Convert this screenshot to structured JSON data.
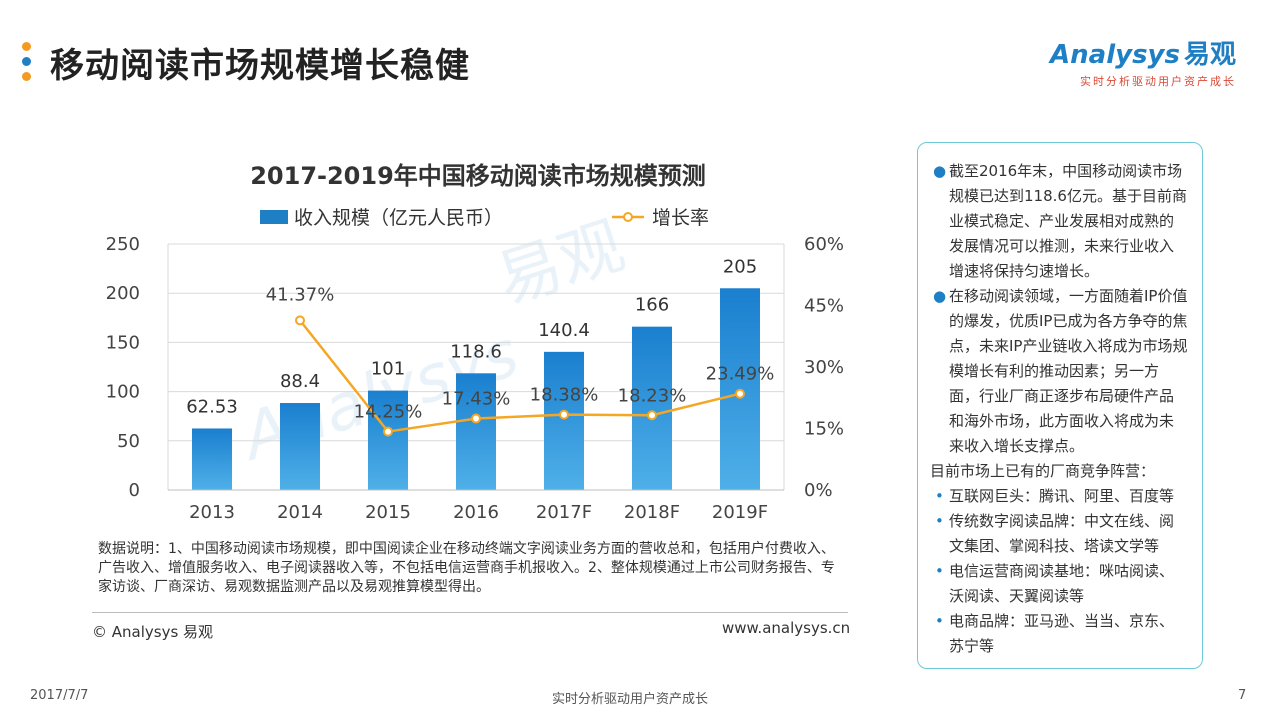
{
  "page": {
    "title": "移动阅读市场规模增长稳健",
    "accent_colors": [
      "#f39a1f",
      "#1f7fc4",
      "#f39a1f"
    ]
  },
  "logo": {
    "brand": "Analysys",
    "brand_cn": "易观",
    "tagline": "实时分析驱动用户资产成长"
  },
  "chart_data": {
    "type": "bar",
    "title": "2017-2019年中国移动阅读市场规模预测",
    "categories": [
      "2013",
      "2014",
      "2015",
      "2016",
      "2017F",
      "2018F",
      "2019F"
    ],
    "series": [
      {
        "name": "收入规模（亿元人民币）",
        "type": "bar",
        "axis": "left",
        "values": [
          62.53,
          88.4,
          101,
          118.6,
          140.4,
          166,
          205
        ],
        "labels": [
          "62.53",
          "88.4",
          "101",
          "118.6",
          "140.4",
          "166",
          "205"
        ],
        "color": "#1f7fc4"
      },
      {
        "name": "增长率",
        "type": "line",
        "axis": "right",
        "values": [
          null,
          41.37,
          14.25,
          17.43,
          18.38,
          18.23,
          23.49
        ],
        "labels": [
          "",
          "41.37%",
          "14.25%",
          "17.43%",
          "18.38%",
          "18.23%",
          "23.49%"
        ],
        "color": "#f5a623"
      }
    ],
    "y_left": {
      "ylim": [
        0,
        250
      ],
      "ticks": [
        0,
        50,
        100,
        150,
        200,
        250
      ],
      "tick_labels": [
        "0",
        "50",
        "100",
        "150",
        "200",
        "250"
      ]
    },
    "y_right": {
      "ylim": [
        0,
        60
      ],
      "ticks": [
        0,
        15,
        30,
        45,
        60
      ],
      "tick_labels": [
        "0%",
        "15%",
        "30%",
        "45%",
        "60%"
      ]
    },
    "legend_position": "top",
    "grid": true
  },
  "note": {
    "text": "数据说明：1、中国移动阅读市场规模，即中国阅读企业在移动终端文字阅读业务方面的营收总和，包括用户付费收入、广告收入、增值服务收入、电子阅读器收入等，不包括电信运营商手机报收入。2、整体规模通过上市公司财务报告、专家访谈、厂商深访、易观数据监测产品以及易观推算模型得出。",
    "copyright": "© Analysys 易观",
    "website": "www.analysys.cn"
  },
  "sidebox": {
    "para1": "截至2016年末，中国移动阅读市场规模已达到118.6亿元。基于目前商业模式稳定、产业发展相对成熟的发展情况可以推测，未来行业收入增速将保持匀速增长。",
    "para2": "在移动阅读领域，一方面随着IP价值的爆发，优质IP已成为各方争夺的焦点，未来IP产业链收入将成为市场规模增长有利的推动因素；另一方面，行业厂商正逐步布局硬件产品和海外市场，此方面收入将成为未来收入增长支撑点。",
    "subhead": "目前市场上已有的厂商竞争阵营：",
    "items": [
      "互联网巨头：腾讯、阿里、百度等",
      "传统数字阅读品牌：中文在线、阅文集团、掌阅科技、塔读文学等",
      "电信运营商阅读基地：咪咕阅读、沃阅读、天翼阅读等",
      "电商品牌：亚马逊、当当、京东、苏宁等"
    ]
  },
  "footer": {
    "date": "2017/7/7",
    "center": "实时分析驱动用户资产成长",
    "page_number": "7"
  }
}
